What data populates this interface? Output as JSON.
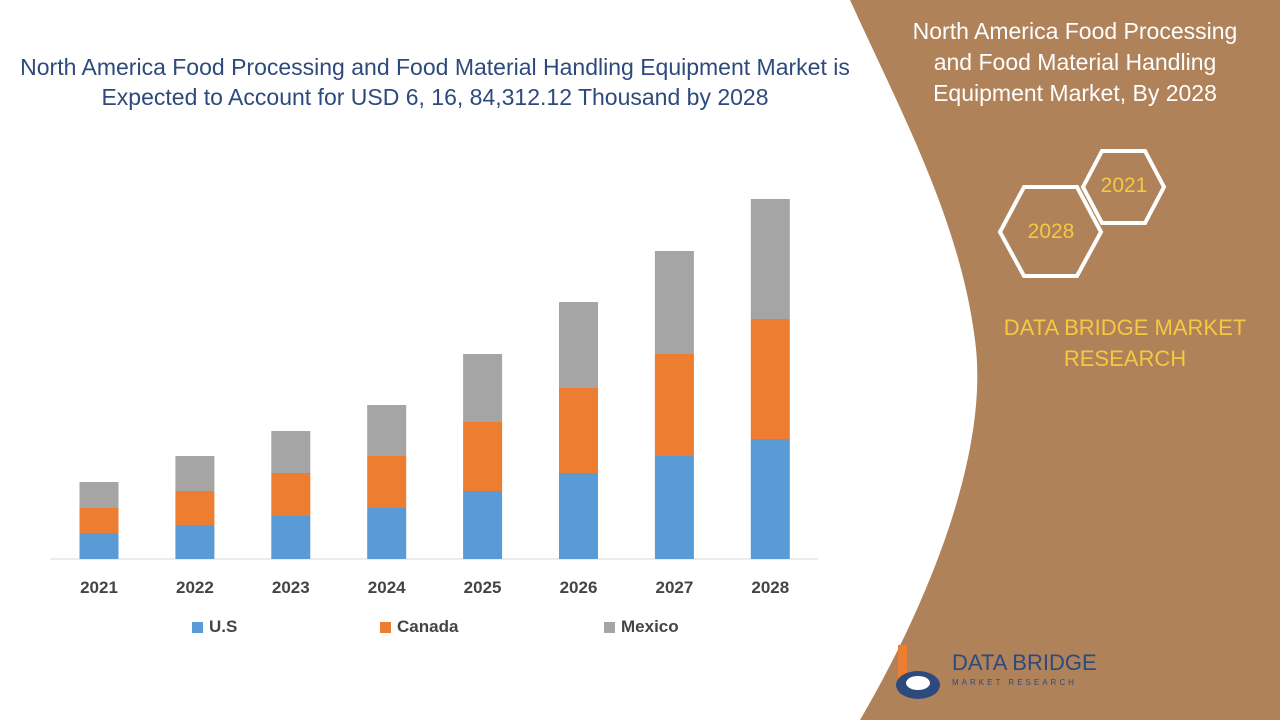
{
  "title": "North America Food Processing and Food Material Handling Equipment Market is Expected to Account for USD 6, 16, 84,312.12 Thousand by 2028",
  "side_panel": {
    "title": "North America Food Processing and Food Material Handling Equipment Market, By 2028",
    "hex_labels": [
      "2021",
      "2028"
    ],
    "brand": "DATA BRIDGE MARKET RESEARCH",
    "color": "#b0825a"
  },
  "logo": {
    "name": "DATA BRIDGE",
    "tagline": "MARKET RESEARCH"
  },
  "chart_data": {
    "type": "bar",
    "stacked": true,
    "categories": [
      "2021",
      "2022",
      "2023",
      "2024",
      "2025",
      "2026",
      "2027",
      "2028"
    ],
    "series": [
      {
        "name": "U.S",
        "color": "#5b9bd5",
        "values": [
          26,
          34,
          43,
          51,
          68,
          86,
          103,
          120
        ]
      },
      {
        "name": "Canada",
        "color": "#ed7d31",
        "values": [
          25,
          34,
          43,
          52,
          69,
          85,
          102,
          120
        ]
      },
      {
        "name": "Mexico",
        "color": "#a5a5a5",
        "values": [
          26,
          35,
          42,
          51,
          68,
          86,
          103,
          120
        ]
      }
    ],
    "ylim": [
      0,
      360
    ],
    "legend": "bottom",
    "grid": false,
    "y_axis_shown": false
  }
}
